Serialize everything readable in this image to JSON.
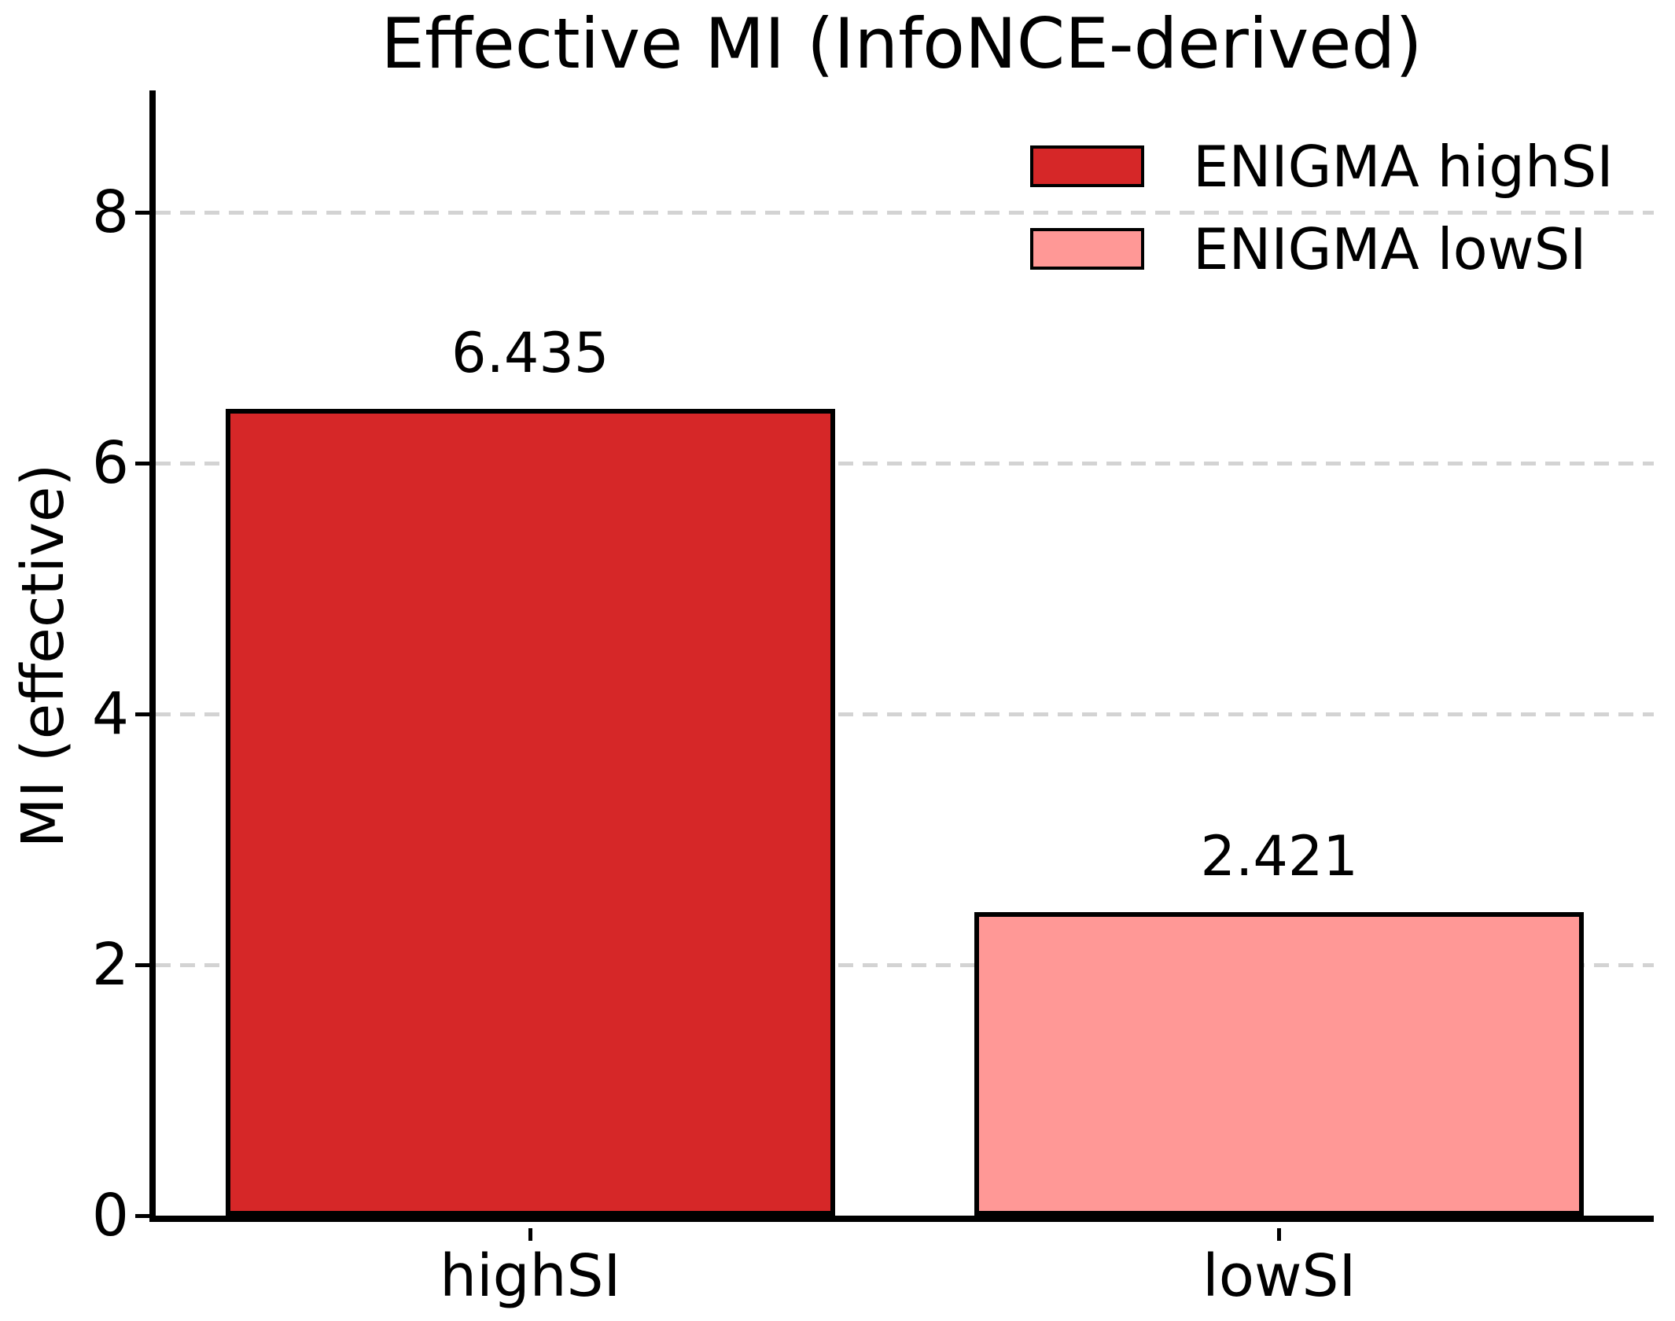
{
  "chart_data": {
    "type": "bar",
    "title": "Effective MI (InfoNCE-derived)",
    "xlabel": "",
    "ylabel": "MI (effective)",
    "categories": [
      "highSI",
      "lowSI"
    ],
    "bars": [
      {
        "category": "highSI",
        "value": 6.435,
        "value_label": "6.435",
        "fill_color": "#d62728",
        "edge_color": "#000000",
        "legend_label": "ENIGMA highSI"
      },
      {
        "category": "lowSI",
        "value": 2.421,
        "value_label": "2.421",
        "fill_color": "#ff9896",
        "edge_color": "#000000",
        "legend_label": "ENIGMA lowSI"
      }
    ],
    "legend": {
      "position": "upper right",
      "frame": false,
      "entries": [
        {
          "label": "ENIGMA highSI",
          "color": "#d62728"
        },
        {
          "label": "ENIGMA lowSI",
          "color": "#ff9896"
        }
      ]
    },
    "yticks": [
      {
        "value": 0,
        "label": "0"
      },
      {
        "value": 2,
        "label": "2"
      },
      {
        "value": 4,
        "label": "4"
      },
      {
        "value": 6,
        "label": "6"
      },
      {
        "value": 8,
        "label": "8"
      }
    ],
    "ylim": [
      0,
      9.0
    ],
    "grid": {
      "axis": "y",
      "style": "dashed",
      "color": "#d3d3d3",
      "values": [
        2,
        4,
        6,
        8
      ]
    },
    "colors": {
      "background": "#ffffff",
      "spine": "#000000",
      "text": "#000000"
    }
  }
}
